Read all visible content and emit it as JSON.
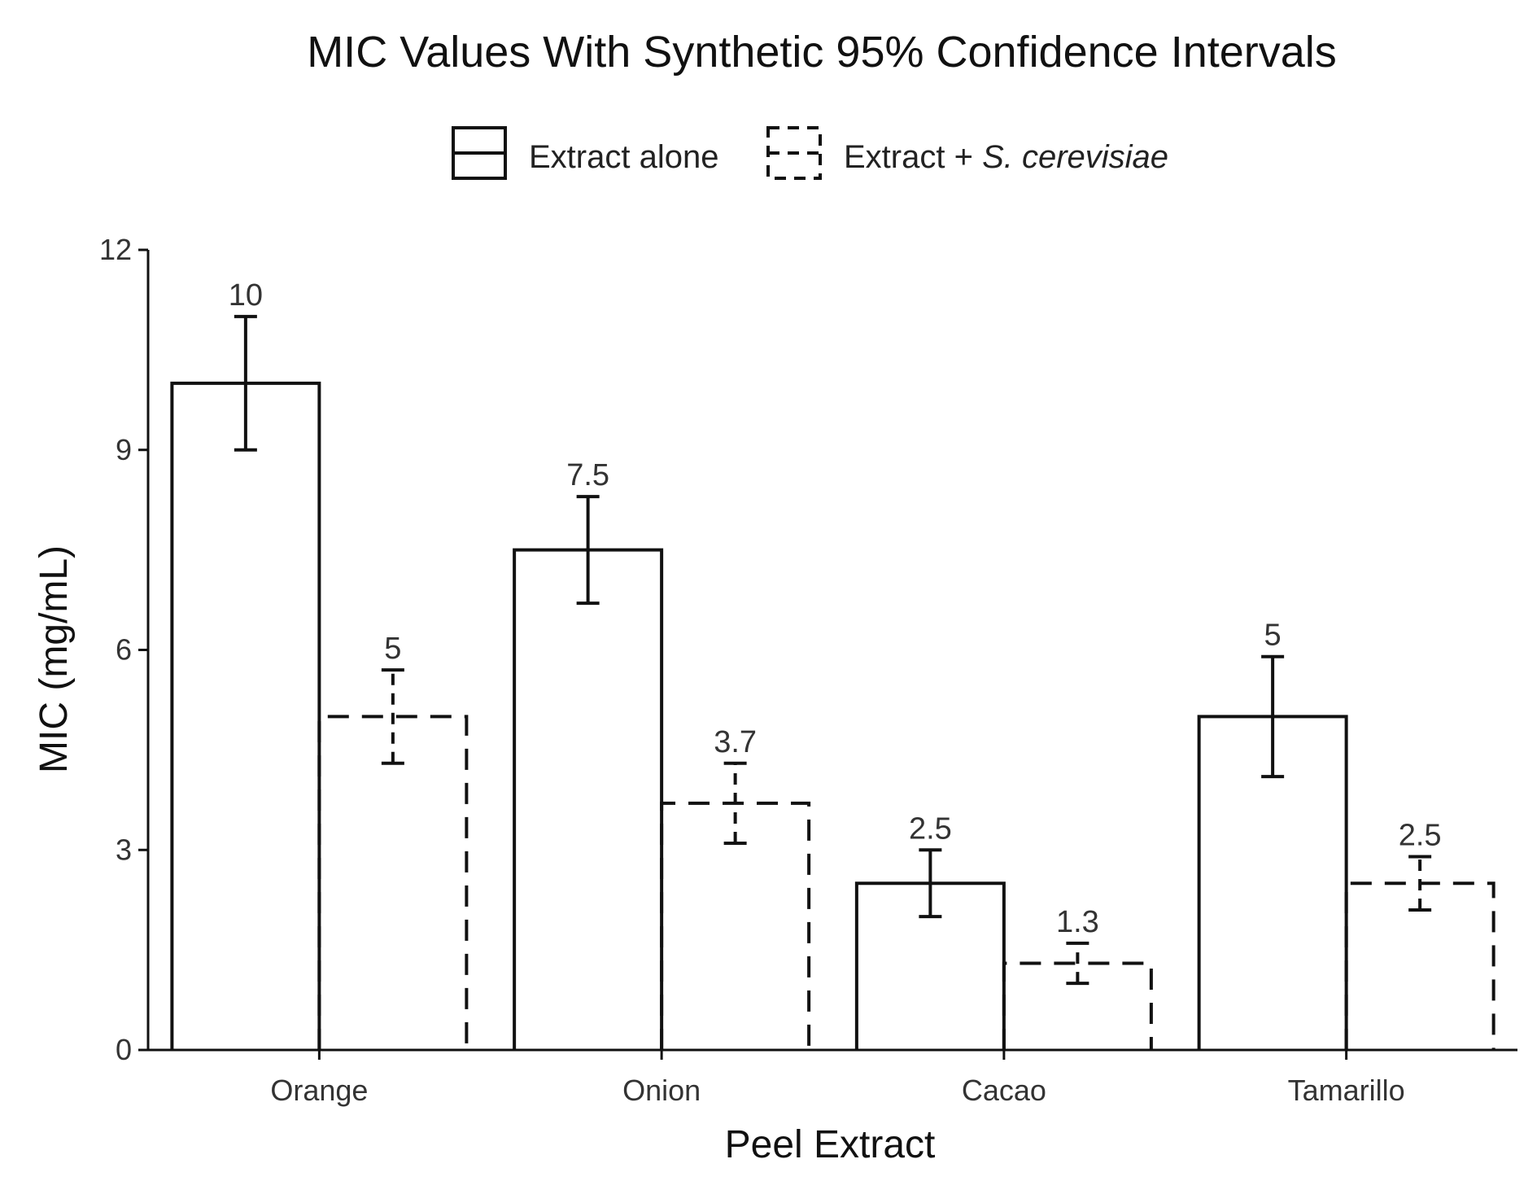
{
  "chart_data": {
    "type": "bar",
    "title": "MIC Values With Synthetic 95% Confidence Intervals",
    "xlabel": "Peel Extract",
    "ylabel": "MIC (mg/mL)",
    "ylim": [
      0,
      12
    ],
    "yticks": [
      0,
      3,
      6,
      9,
      12
    ],
    "categories": [
      "Orange",
      "Onion",
      "Cacao",
      "Tamarillo"
    ],
    "legend": {
      "position": "top",
      "entries": [
        {
          "text": "Extract alone",
          "style": "solid"
        },
        {
          "text_plain": "Extract + ",
          "text_italic": "S. cerevisiae",
          "style": "dashed"
        }
      ]
    },
    "series": [
      {
        "name": "Extract alone",
        "values": [
          10,
          7.5,
          2.5,
          5
        ],
        "labels": [
          "10",
          "7.5",
          "2.5",
          "5"
        ],
        "ci_low": [
          9.0,
          6.7,
          2.0,
          4.1
        ],
        "ci_high": [
          11.0,
          8.3,
          3.0,
          5.9
        ]
      },
      {
        "name": "Extract + S. cerevisiae",
        "values": [
          5,
          3.7,
          1.3,
          2.5
        ],
        "labels": [
          "5",
          "3.7",
          "1.3",
          "2.5"
        ],
        "ci_low": [
          4.3,
          3.1,
          1.0,
          2.1
        ],
        "ci_high": [
          5.7,
          4.3,
          1.6,
          2.9
        ]
      }
    ],
    "grid": false
  }
}
